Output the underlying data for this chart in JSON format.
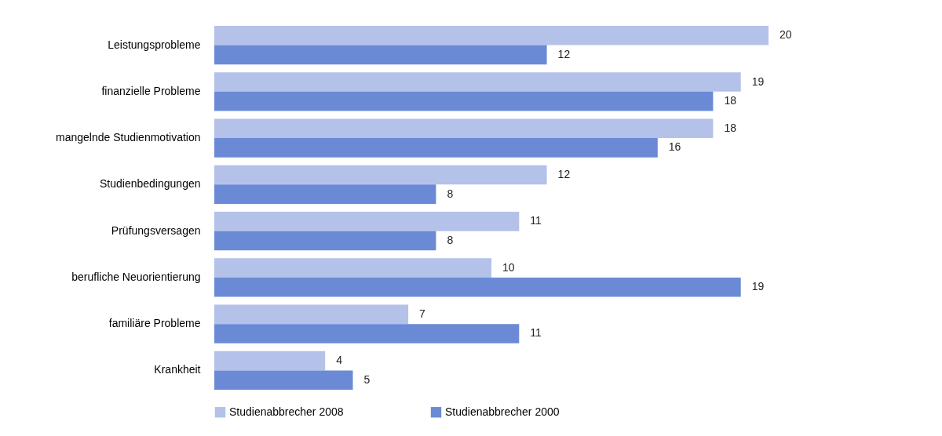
{
  "chart_data": {
    "type": "bar",
    "orientation": "horizontal",
    "categories": [
      "Leistungsprobleme",
      "finanzielle Probleme",
      "mangelnde Studienmotivation",
      "Studienbedingungen",
      "Prüfungsversagen",
      "berufliche Neuorientierung",
      "familiäre Probleme",
      "Krankheit"
    ],
    "series": [
      {
        "name": "Studienabbrecher 2008",
        "color": "#b4c2ea",
        "values": [
          20,
          19,
          18,
          12,
          11,
          10,
          7,
          4
        ]
      },
      {
        "name": "Studienabbrecher 2000",
        "color": "#6b8ad6",
        "values": [
          12,
          18,
          16,
          8,
          8,
          19,
          11,
          5
        ]
      }
    ],
    "data_labels": true,
    "legend": "bottom",
    "grid": false
  }
}
